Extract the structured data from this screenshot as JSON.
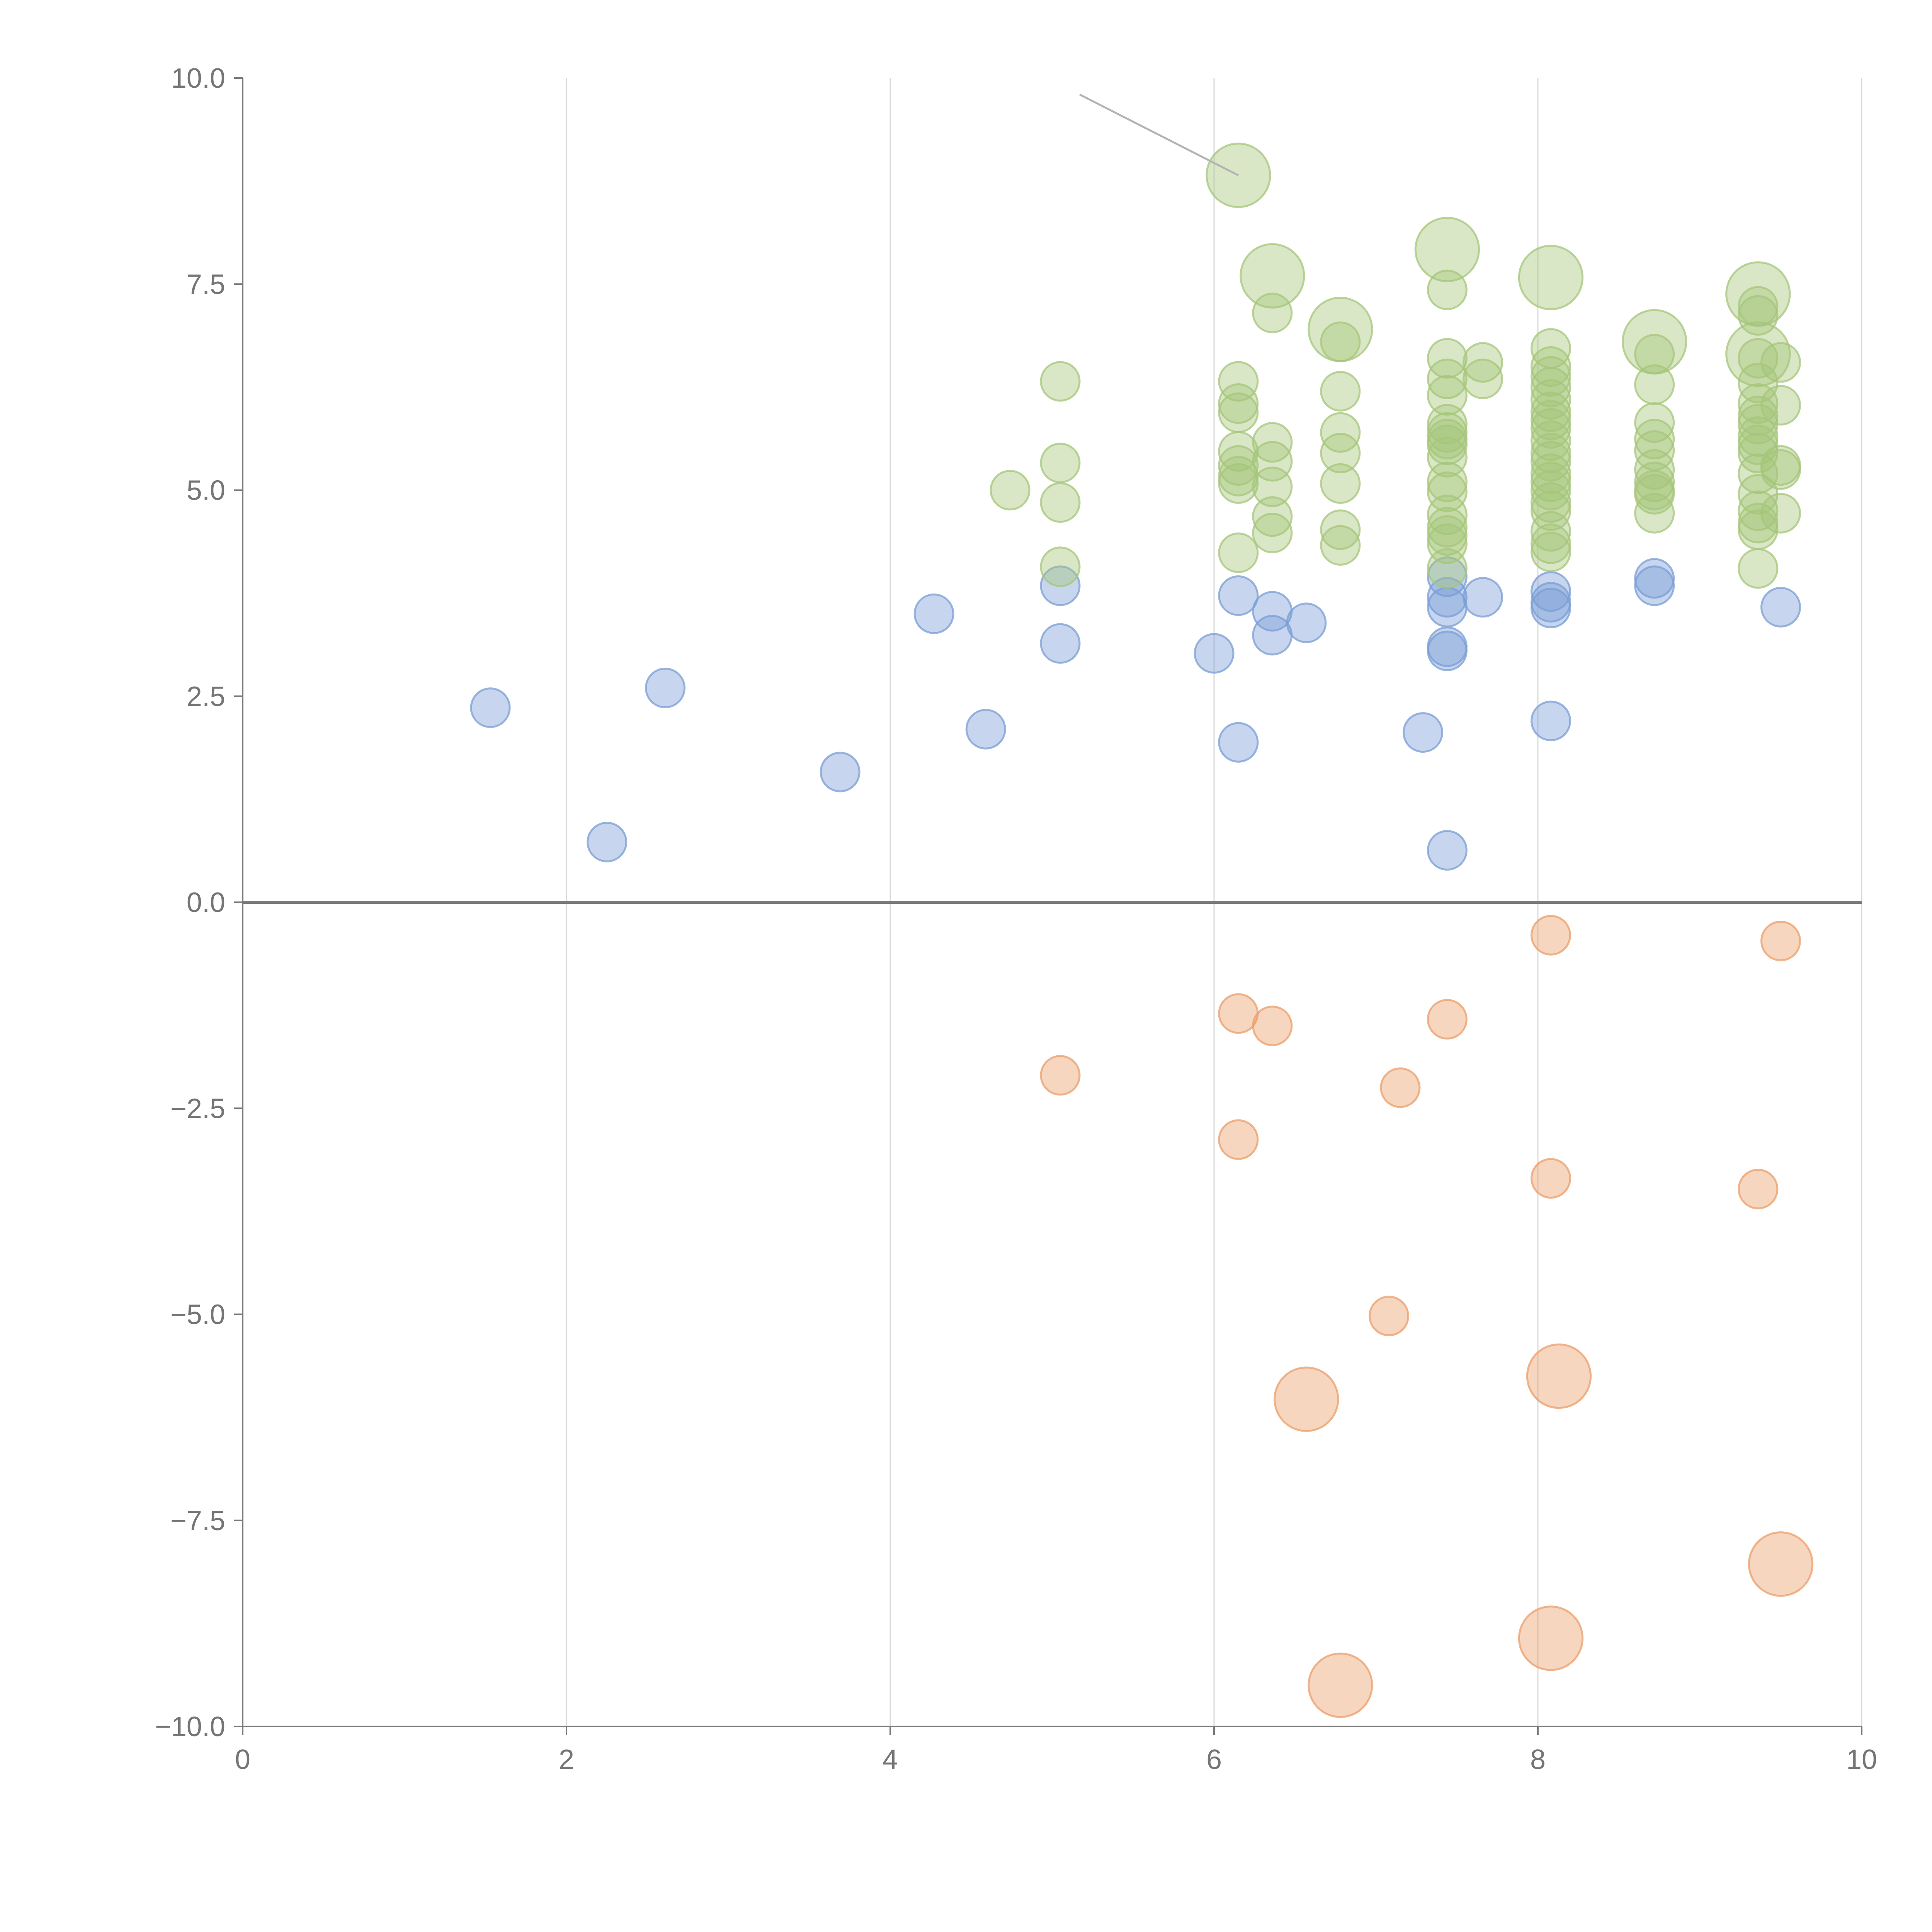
{
  "chart_data": {
    "type": "scatter",
    "title": "",
    "xlabel": "",
    "ylabel": "",
    "xlim": [
      0,
      10
    ],
    "ylim": [
      -10,
      10
    ],
    "xticks": [
      "0",
      "2",
      "4",
      "6",
      "8",
      "10"
    ],
    "yticks": [
      "10.0",
      "7.5",
      "5.0",
      "2.5",
      "0.0",
      "−2.5",
      "−5.0",
      "−7.5",
      "−10.0"
    ],
    "grid": "vertical lines at each x tick",
    "legend": "none",
    "colors": {
      "blue": "#7a9ed6",
      "green": "#a5c57a",
      "orange": "#eb9e6a"
    },
    "series": [
      {
        "color": "blue",
        "points": [
          [
            1.53,
            2.36,
            1
          ],
          [
            2.25,
            0.73,
            1
          ],
          [
            2.61,
            2.6,
            1
          ],
          [
            3.69,
            1.58,
            1
          ],
          [
            4.27,
            3.5,
            1
          ],
          [
            4.59,
            2.1,
            1
          ],
          [
            5.05,
            3.84,
            1
          ],
          [
            5.05,
            3.14,
            1
          ],
          [
            6.0,
            3.02,
            1
          ],
          [
            6.15,
            3.72,
            1
          ],
          [
            6.15,
            1.94,
            1
          ],
          [
            6.36,
            3.53,
            1
          ],
          [
            6.36,
            3.24,
            1
          ],
          [
            6.57,
            3.39,
            1
          ],
          [
            7.29,
            2.06,
            1
          ],
          [
            7.44,
            3.95,
            1
          ],
          [
            7.44,
            3.7,
            1
          ],
          [
            7.44,
            3.58,
            1
          ],
          [
            7.44,
            3.1,
            1
          ],
          [
            7.44,
            3.05,
            1
          ],
          [
            7.44,
            0.63,
            1
          ],
          [
            7.66,
            3.7,
            1
          ],
          [
            8.08,
            3.77,
            1
          ],
          [
            8.08,
            3.64,
            1
          ],
          [
            8.08,
            3.57,
            1
          ],
          [
            8.08,
            2.2,
            1
          ],
          [
            8.72,
            3.93,
            1
          ],
          [
            8.72,
            3.84,
            1
          ],
          [
            9.5,
            3.58,
            1
          ]
        ]
      },
      {
        "color": "green",
        "points": [
          [
            4.74,
            5.0,
            1
          ],
          [
            5.05,
            6.32,
            1
          ],
          [
            5.05,
            5.33,
            1
          ],
          [
            5.05,
            4.85,
            1
          ],
          [
            5.05,
            4.07,
            1
          ],
          [
            6.15,
            8.82,
            2.7
          ],
          [
            6.15,
            6.32,
            1
          ],
          [
            6.15,
            6.05,
            1
          ],
          [
            6.15,
            5.94,
            1
          ],
          [
            6.15,
            5.47,
            1
          ],
          [
            6.15,
            5.3,
            1
          ],
          [
            6.15,
            5.17,
            1
          ],
          [
            6.15,
            5.08,
            1
          ],
          [
            6.15,
            4.24,
            1
          ],
          [
            6.36,
            7.6,
            2.7
          ],
          [
            6.36,
            7.15,
            1
          ],
          [
            6.36,
            5.58,
            1
          ],
          [
            6.36,
            5.35,
            1
          ],
          [
            6.36,
            5.04,
            1
          ],
          [
            6.36,
            4.68,
            1
          ],
          [
            6.36,
            4.48,
            1
          ],
          [
            6.78,
            6.95,
            2.7
          ],
          [
            6.78,
            6.8,
            1
          ],
          [
            6.78,
            6.2,
            1
          ],
          [
            6.78,
            5.7,
            1
          ],
          [
            6.78,
            5.45,
            1
          ],
          [
            6.78,
            5.08,
            1
          ],
          [
            6.78,
            4.52,
            1
          ],
          [
            6.78,
            4.33,
            1
          ],
          [
            7.44,
            7.92,
            2.7
          ],
          [
            7.44,
            7.43,
            1
          ],
          [
            7.44,
            6.6,
            1
          ],
          [
            7.44,
            6.35,
            1
          ],
          [
            7.44,
            6.15,
            1
          ],
          [
            7.44,
            5.8,
            1
          ],
          [
            7.44,
            5.7,
            1
          ],
          [
            7.44,
            5.62,
            1
          ],
          [
            7.44,
            5.55,
            1
          ],
          [
            7.44,
            5.4,
            1
          ],
          [
            7.44,
            5.1,
            1
          ],
          [
            7.44,
            4.98,
            1
          ],
          [
            7.44,
            4.7,
            1
          ],
          [
            7.44,
            4.55,
            1
          ],
          [
            7.44,
            4.45,
            1
          ],
          [
            7.44,
            4.35,
            1
          ],
          [
            7.44,
            4.05,
            1
          ],
          [
            7.66,
            6.55,
            1
          ],
          [
            7.66,
            6.35,
            1
          ],
          [
            8.08,
            7.58,
            2.7
          ],
          [
            8.08,
            6.72,
            1
          ],
          [
            8.08,
            6.5,
            1
          ],
          [
            8.08,
            6.38,
            1
          ],
          [
            8.08,
            6.25,
            1
          ],
          [
            8.08,
            6.1,
            1
          ],
          [
            8.08,
            5.95,
            1
          ],
          [
            8.08,
            5.85,
            1
          ],
          [
            8.08,
            5.75,
            1
          ],
          [
            8.08,
            5.6,
            1
          ],
          [
            8.08,
            5.45,
            1
          ],
          [
            8.08,
            5.35,
            1
          ],
          [
            8.08,
            5.2,
            1
          ],
          [
            8.08,
            5.1,
            1
          ],
          [
            8.08,
            5.0,
            1
          ],
          [
            8.08,
            4.85,
            1
          ],
          [
            8.08,
            4.75,
            1
          ],
          [
            8.08,
            4.5,
            1
          ],
          [
            8.08,
            4.35,
            1
          ],
          [
            8.08,
            4.25,
            1
          ],
          [
            8.72,
            6.8,
            2.7
          ],
          [
            8.72,
            6.65,
            1
          ],
          [
            8.72,
            6.28,
            1
          ],
          [
            8.72,
            5.82,
            1
          ],
          [
            8.72,
            5.62,
            1
          ],
          [
            8.72,
            5.48,
            1
          ],
          [
            8.72,
            5.25,
            1
          ],
          [
            8.72,
            5.1,
            1
          ],
          [
            8.72,
            5.0,
            1
          ],
          [
            8.72,
            4.95,
            1
          ],
          [
            8.72,
            4.72,
            1
          ],
          [
            9.36,
            7.38,
            2.7
          ],
          [
            9.36,
            6.65,
            2.7
          ],
          [
            9.36,
            7.23,
            1
          ],
          [
            9.36,
            7.12,
            1
          ],
          [
            9.36,
            6.6,
            1
          ],
          [
            9.36,
            6.3,
            1
          ],
          [
            9.36,
            6.05,
            1
          ],
          [
            9.36,
            5.9,
            1
          ],
          [
            9.36,
            5.8,
            1
          ],
          [
            9.36,
            5.65,
            1
          ],
          [
            9.36,
            5.55,
            1
          ],
          [
            9.36,
            5.45,
            1
          ],
          [
            9.36,
            5.2,
            1
          ],
          [
            9.36,
            4.95,
            1
          ],
          [
            9.36,
            4.75,
            1
          ],
          [
            9.36,
            4.6,
            1
          ],
          [
            9.36,
            4.52,
            1
          ],
          [
            9.36,
            4.05,
            1
          ],
          [
            9.5,
            6.55,
            1
          ],
          [
            9.5,
            6.03,
            1
          ],
          [
            9.5,
            5.3,
            1
          ],
          [
            9.5,
            5.25,
            1
          ],
          [
            9.5,
            4.72,
            1
          ]
        ]
      },
      {
        "color": "orange",
        "points": [
          [
            5.05,
            -2.1,
            1
          ],
          [
            6.15,
            -1.35,
            1
          ],
          [
            6.15,
            -2.88,
            1
          ],
          [
            6.36,
            -1.5,
            1
          ],
          [
            6.57,
            -6.03,
            2.7
          ],
          [
            6.78,
            -9.5,
            2.7
          ],
          [
            7.08,
            -5.02,
            1
          ],
          [
            7.15,
            -2.25,
            1
          ],
          [
            7.44,
            -1.42,
            1
          ],
          [
            8.08,
            -0.4,
            1
          ],
          [
            8.08,
            -3.35,
            1
          ],
          [
            8.08,
            -8.93,
            2.7
          ],
          [
            8.13,
            -5.75,
            2.7
          ],
          [
            9.36,
            -3.48,
            1
          ],
          [
            9.5,
            -0.47,
            1
          ],
          [
            9.5,
            -8.03,
            2.7
          ]
        ]
      }
    ],
    "annotation_leader": {
      "from": [
        5.17,
        9.8
      ],
      "to": [
        6.15,
        8.82
      ]
    }
  }
}
